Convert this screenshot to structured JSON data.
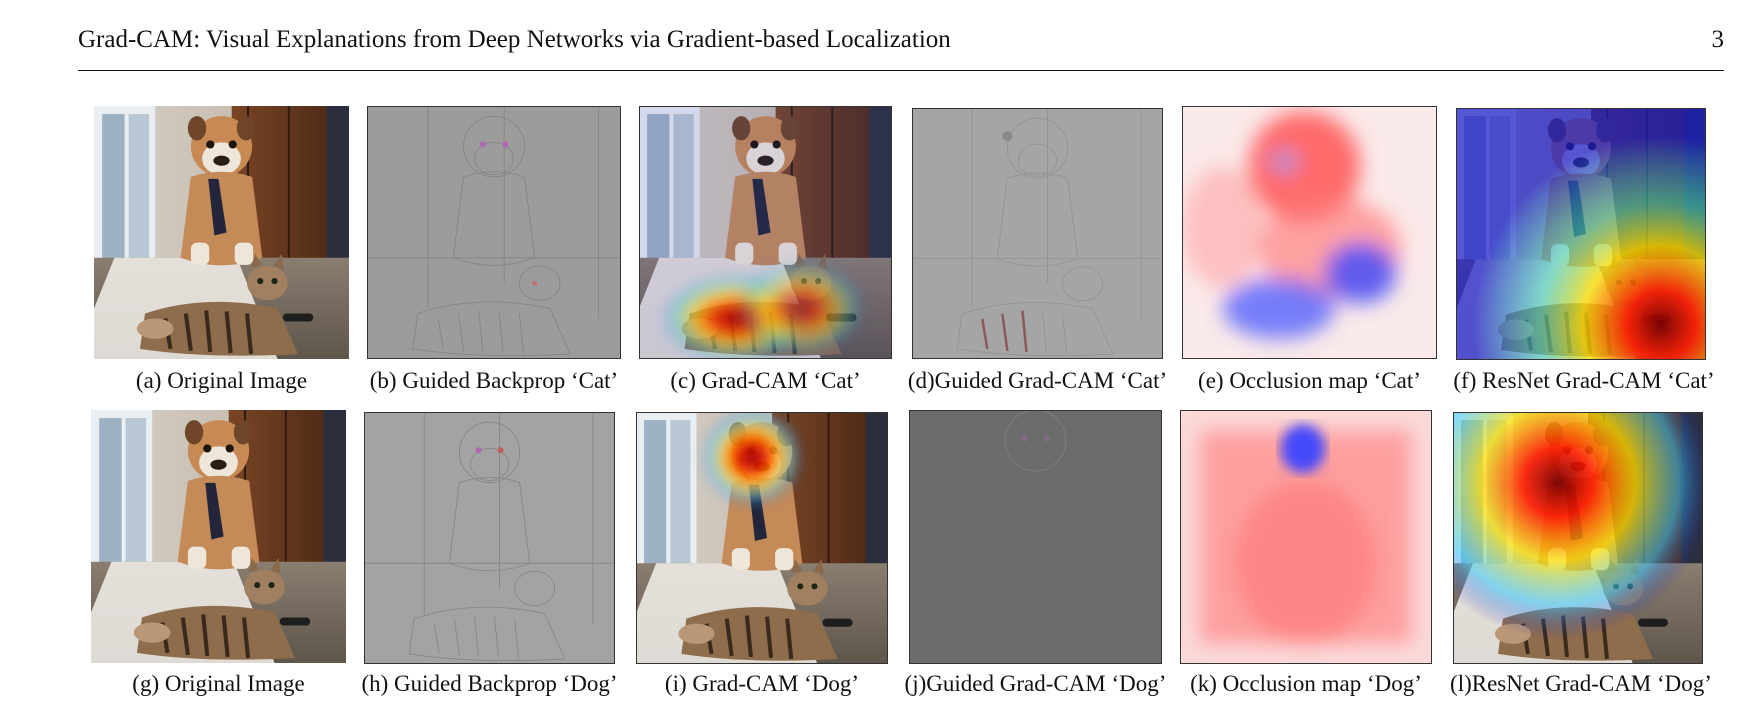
{
  "header": {
    "title": "Grad-CAM: Visual Explanations from Deep Networks via Gradient-based Localization",
    "page_number": "3"
  },
  "figure": {
    "rows": [
      {
        "row": "cat",
        "panels": [
          {
            "caption": "(a) Original Image",
            "kind": "photo"
          },
          {
            "caption": "(b) Guided Backprop ‘Cat’",
            "kind": "guided-backprop"
          },
          {
            "caption": "(c) Grad-CAM ‘Cat’",
            "kind": "gradcam-overlay"
          },
          {
            "caption": "(d)Guided Grad-CAM ‘Cat’",
            "kind": "guided-gradcam"
          },
          {
            "caption": "(e) Occlusion map ‘Cat’",
            "kind": "occlusion-map"
          },
          {
            "caption": "(f) ResNet Grad-CAM ‘Cat’",
            "kind": "resnet-gradcam-overlay"
          }
        ]
      },
      {
        "row": "dog",
        "panels": [
          {
            "caption": "(g) Original Image",
            "kind": "photo"
          },
          {
            "caption": "(h) Guided Backprop ‘Dog’",
            "kind": "guided-backprop"
          },
          {
            "caption": "(i) Grad-CAM ‘Dog’",
            "kind": "gradcam-overlay"
          },
          {
            "caption": "(j)Guided Grad-CAM ‘Dog’",
            "kind": "guided-gradcam"
          },
          {
            "caption": "(k) Occlusion map ‘Dog’",
            "kind": "occlusion-map"
          },
          {
            "caption": "(l)ResNet Grad-CAM ‘Dog’",
            "kind": "resnet-gradcam-overlay"
          }
        ]
      }
    ]
  }
}
